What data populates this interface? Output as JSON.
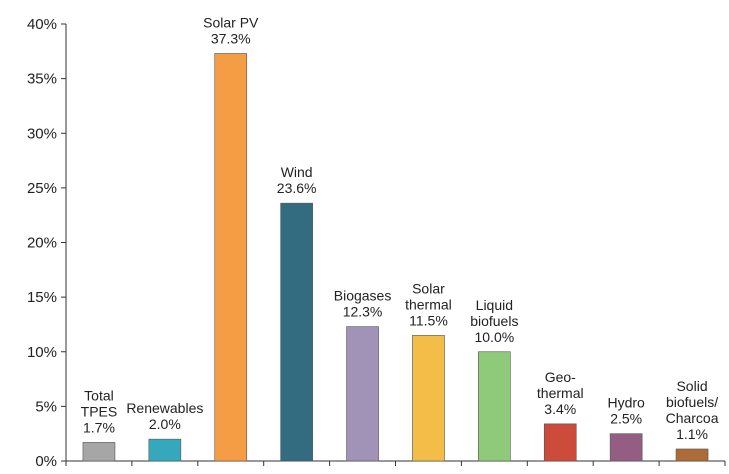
{
  "chart_data": {
    "type": "bar",
    "title": "",
    "xlabel": "",
    "ylabel": "",
    "ylim": [
      0,
      40
    ],
    "yticks": [
      "0%",
      "5%",
      "10%",
      "15%",
      "20%",
      "25%",
      "30%",
      "35%",
      "40%"
    ],
    "grid": false,
    "legend": "none",
    "categories": [
      "Total TPES",
      "Renewables",
      "Solar PV",
      "Wind",
      "Biogases",
      "Solar thermal",
      "Liquid biofuels",
      "Geo-thermal",
      "Hydro",
      "Solid biofuels/Charcoal"
    ],
    "values": [
      1.7,
      2.0,
      37.3,
      23.6,
      12.3,
      11.5,
      10.0,
      3.4,
      2.5,
      1.1
    ],
    "label_lines": [
      [
        "Total",
        "TPES",
        "1.7%"
      ],
      [
        "Renewables",
        "2.0%"
      ],
      [
        "Solar PV",
        "37.3%"
      ],
      [
        "Wind",
        "23.6%"
      ],
      [
        "Biogases",
        "12.3%"
      ],
      [
        "Solar",
        "thermal",
        "11.5%"
      ],
      [
        "Liquid",
        "biofuels",
        "10.0%"
      ],
      [
        "Geo-",
        "thermal",
        "3.4%"
      ],
      [
        "Hydro",
        "2.5%"
      ],
      [
        "Solid",
        "biofuels/",
        "Charcoa",
        "1.1%"
      ]
    ],
    "colors": [
      "#a6a6a6",
      "#35a8bd",
      "#f59d45",
      "#336b80",
      "#a193b8",
      "#f4bd48",
      "#8fc97a",
      "#cc4b3a",
      "#935e82",
      "#ad6b37"
    ]
  }
}
